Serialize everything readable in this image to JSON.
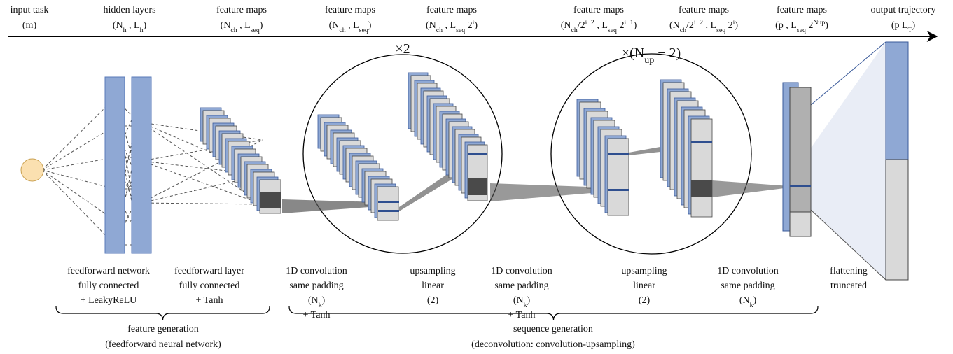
{
  "columns": [
    {
      "lines": [
        [
          "input task"
        ],
        [
          "(m)"
        ]
      ]
    },
    {
      "lines": [
        [
          "hidden layers"
        ],
        [
          "(N",
          {
            "sub": "h"
          },
          " , L",
          {
            "sub": "h"
          },
          ")"
        ]
      ]
    },
    {
      "lines": [
        [
          "feature maps"
        ],
        [
          "(N",
          {
            "sub": "ch"
          },
          " , L",
          {
            "sub": "seq"
          },
          ")"
        ]
      ]
    },
    {
      "lines": [
        [
          "feature maps"
        ],
        [
          "(N",
          {
            "sub": "ch"
          },
          " , L",
          {
            "sub": "seq"
          },
          ")"
        ]
      ]
    },
    {
      "lines": [
        [
          "feature maps"
        ],
        [
          "(N",
          {
            "sub": "ch"
          },
          " , L",
          {
            "sub": "seq"
          },
          " 2",
          {
            "sup": "i"
          },
          ")"
        ]
      ]
    },
    {
      "lines": [
        [
          "feature maps"
        ],
        [
          "(N",
          {
            "sub": "ch"
          },
          "/2",
          {
            "sup": "i−2"
          },
          " , L",
          {
            "sub": "seq"
          },
          " 2",
          {
            "sup": "i−1"
          },
          ")"
        ]
      ]
    },
    {
      "lines": [
        [
          "feature maps"
        ],
        [
          "(N",
          {
            "sub": "ch"
          },
          "/2",
          {
            "sup": "i−2"
          },
          " , L",
          {
            "sub": "seq"
          },
          " 2",
          {
            "sup": "i"
          },
          ")"
        ]
      ]
    },
    {
      "lines": [
        [
          "feature maps"
        ],
        [
          "(p , L",
          {
            "sub": "seq"
          },
          " 2",
          {
            "sup": "Nup"
          },
          ")"
        ]
      ]
    },
    {
      "lines": [
        [
          "output trajectory"
        ],
        [
          "(p L",
          {
            "sub": "T"
          },
          ")"
        ]
      ]
    }
  ],
  "multipliers": [
    [
      "×2"
    ],
    [
      "×(N",
      {
        "sub": "up"
      },
      " − 2)"
    ]
  ],
  "operations": [
    {
      "lines": [
        [
          "feedforward network"
        ],
        [
          "fully connected"
        ],
        [
          "+ LeakyReLU"
        ]
      ]
    },
    {
      "lines": [
        [
          "feedforward layer"
        ],
        [
          "fully connected"
        ],
        [
          "+ Tanh"
        ]
      ]
    },
    {
      "lines": [
        [
          "1D convolution"
        ],
        [
          "same padding"
        ],
        [
          "(N",
          {
            "sub": "k"
          },
          ")"
        ],
        [
          "+ Tanh"
        ]
      ]
    },
    {
      "lines": [
        [
          "upsampling"
        ],
        [
          "linear"
        ],
        [
          "(2)"
        ]
      ]
    },
    {
      "lines": [
        [
          "1D convolution"
        ],
        [
          "same padding"
        ],
        [
          "(N",
          {
            "sub": "k"
          },
          ")"
        ],
        [
          "+ Tanh"
        ]
      ]
    },
    {
      "lines": [
        [
          "upsampling"
        ],
        [
          "linear"
        ],
        [
          "(2)"
        ]
      ]
    },
    {
      "lines": [
        [
          "1D convolution"
        ],
        [
          "same padding"
        ],
        [
          "(N",
          {
            "sub": "k"
          },
          ")"
        ]
      ]
    },
    {
      "lines": [
        [
          "flattening"
        ],
        [
          "truncated"
        ]
      ]
    }
  ],
  "groups": [
    {
      "lines": [
        [
          "feature generation"
        ],
        [
          "(feedforward neural network)"
        ]
      ]
    },
    {
      "lines": [
        [
          "sequence generation"
        ],
        [
          "(deconvolution: convolution-upsampling)"
        ]
      ]
    }
  ]
}
